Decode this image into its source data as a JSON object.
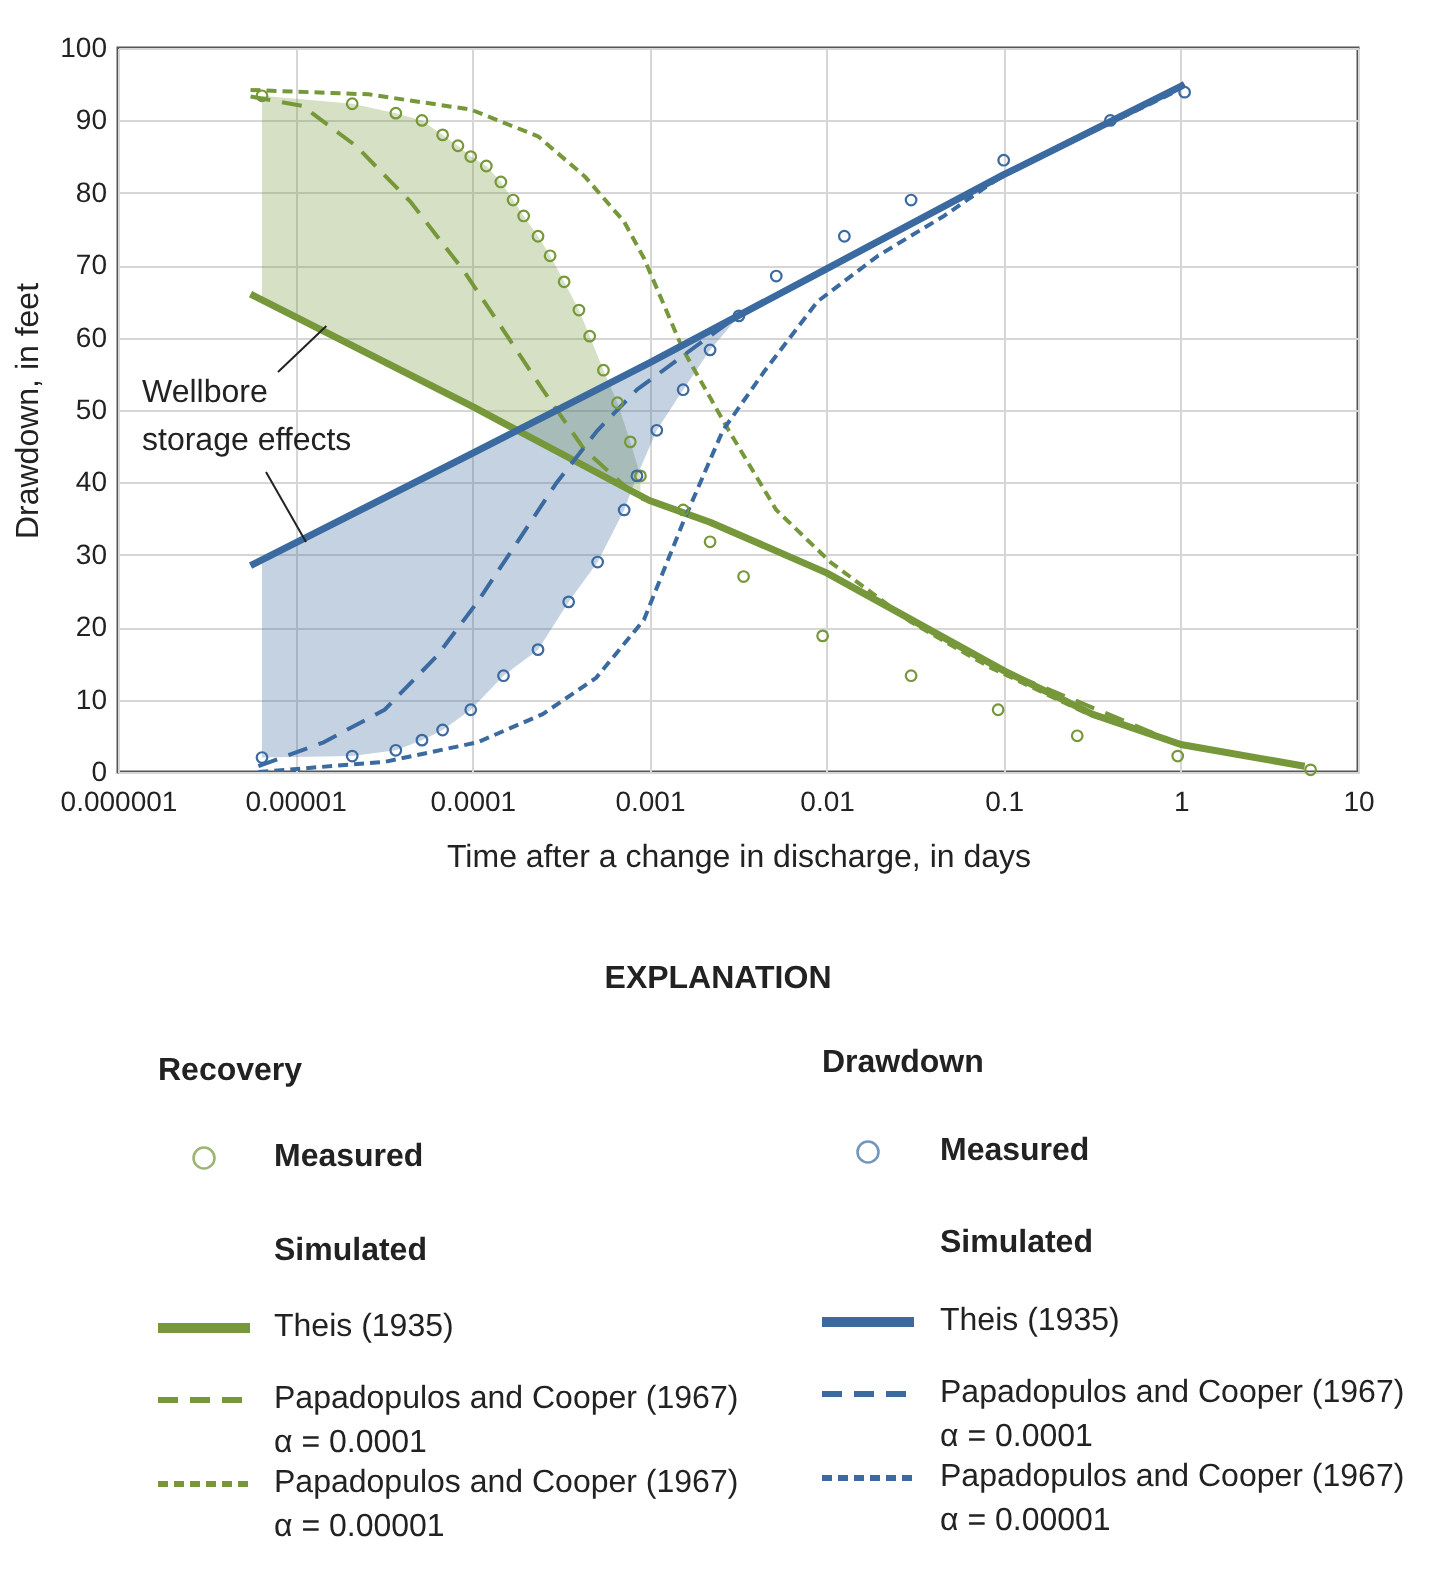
{
  "chart_data": {
    "type": "line",
    "xlabel": "Time after a change in discharge, in days",
    "ylabel": "Drawdown, in feet",
    "log": "x",
    "grid": true,
    "legend": "bottom",
    "legend_title": "EXPLANATION",
    "xlim": [
      1e-06,
      10
    ],
    "xticks": [
      {
        "value": 1e-06,
        "label": "0.000001"
      },
      {
        "value": 1e-05,
        "label": "0.00001"
      },
      {
        "value": 0.0001,
        "label": "0.0001"
      },
      {
        "value": 0.001,
        "label": "0.001"
      },
      {
        "value": 0.01,
        "label": "0.01"
      },
      {
        "value": 0.1,
        "label": "0.1"
      },
      {
        "value": 1,
        "label": "1"
      },
      {
        "value": 10,
        "label": "10"
      }
    ],
    "ylim": [
      0,
      100
    ],
    "yticks": [
      0,
      10,
      20,
      30,
      40,
      50,
      60,
      70,
      80,
      90,
      100
    ],
    "annotations": [
      {
        "text": "Wellbore\nstorage effects",
        "x": 1.5e-05,
        "y": 61.6
      },
      "Recovery",
      "Drawdown",
      "Simulated",
      "Simulated"
    ],
    "series": [
      {
        "name": "Measured",
        "type": "scatter",
        "marker": "circle",
        "color": "#76983a",
        "x": [
          6.5e-06,
          2.1e-05,
          3.7e-05,
          5.2e-05,
          6.8e-05,
          8.3e-05,
          9.8e-05,
          0.00012,
          0.000145,
          0.00017,
          0.000195,
          0.000235,
          0.000275,
          0.00033,
          0.0004,
          0.00046,
          0.00055,
          0.00066,
          0.00078,
          0.00089,
          0.00155,
          0.0022,
          0.0034,
          0.0095,
          0.03,
          0.093,
          0.26,
          0.96,
          5.4
        ],
        "values": [
          93.4,
          92.3,
          91,
          90,
          88,
          86.5,
          85,
          83.7,
          81.5,
          79,
          76.8,
          74,
          71.3,
          67.7,
          63.8,
          60.2,
          55.5,
          51,
          45.6,
          40.9,
          36.2,
          31.8,
          27,
          18.8,
          13.3,
          8.6,
          5,
          2.2,
          0.3
        ],
        "lower": [
          65.3,
          58.8,
          55.8,
          54,
          52.6,
          51.5,
          50.6,
          49.6,
          48.5,
          47.6,
          46.9,
          45.9,
          45,
          44,
          43,
          42.3,
          41.3,
          40.3,
          39.5,
          38.7,
          null,
          null,
          null,
          null,
          null,
          null,
          null,
          null,
          null
        ],
        "upper": [
          93.4,
          92.3,
          91,
          90,
          88,
          86.5,
          85,
          83.7,
          81.5,
          79,
          76.8,
          74,
          71.3,
          67.7,
          63.8,
          60.2,
          55.5,
          51,
          45.6,
          40.9,
          null,
          null,
          null,
          null,
          null,
          null,
          null,
          null,
          null
        ]
      },
      {
        "name": "Theis (1935)",
        "line_style": "solid",
        "color": "#76983a",
        "x": [
          5.6e-06,
          0.0001,
          0.001,
          0.0022,
          0.01,
          0.1,
          0.316,
          1,
          5
        ],
        "values": [
          66,
          50.5,
          37.5,
          34.5,
          27.5,
          14,
          8,
          3.8,
          0.8
        ]
      },
      {
        "name": "Papadopulos and Cooper (1967)\nα = 0.0001",
        "line_style": "dashed",
        "color": "#76983a",
        "x": [
          5.6e-06,
          1.1e-05,
          2.2e-05,
          4.5e-05,
          8.9e-05,
          0.00015,
          0.00025,
          0.00043,
          0.00085,
          0.0022,
          0.01,
          0.1,
          1,
          4.5
        ],
        "values": [
          93.3,
          92,
          86.5,
          78.7,
          69.3,
          61,
          52.8,
          44.5,
          38,
          34.5,
          27.5,
          14,
          3.8,
          1
        ]
      },
      {
        "name": "Papadopulos and Cooper (1967)\nα = 0.00001",
        "line_style": "dotted",
        "color": "#76983a",
        "x": [
          5.6e-06,
          2.6e-05,
          9.8e-05,
          0.000235,
          0.00043,
          0.00072,
          0.00093,
          0.00155,
          0.0028,
          0.0052,
          0.0105,
          0.03,
          0.083,
          0.3,
          1,
          5
        ],
        "values": [
          94.2,
          93.6,
          91.5,
          87.8,
          82.3,
          76,
          71,
          58.3,
          47.2,
          36.2,
          29,
          20.7,
          14.5,
          8,
          3.8,
          0.8
        ]
      },
      {
        "name": "Measured",
        "type": "scatter",
        "marker": "circle",
        "color": "#3b6aa0",
        "x": [
          6.5e-06,
          2.1e-05,
          3.7e-05,
          5.2e-05,
          6.8e-05,
          9.8e-05,
          0.00015,
          0.000235,
          0.00035,
          0.00051,
          0.00072,
          0.00085,
          0.0011,
          0.00155,
          0.0022,
          0.0032,
          0.0052,
          0.0126,
          0.03,
          0.1,
          0.4,
          1.05
        ],
        "values": [
          2,
          2.2,
          3,
          4.4,
          5.8,
          8.6,
          13.3,
          16.9,
          23.5,
          29,
          36.2,
          40.9,
          47.2,
          52.8,
          58.3,
          63,
          68.5,
          74,
          79,
          84.5,
          90,
          93.9
        ],
        "lower": [
          2,
          2.2,
          3,
          4.4,
          5.8,
          8.6,
          13.3,
          16.9,
          23.5,
          29,
          36.2,
          40.9,
          47.2,
          52.8,
          58.3,
          63,
          null,
          null,
          null,
          null,
          null,
          null
        ],
        "upper": [
          29.3,
          35.8,
          38.8,
          40.6,
          42,
          44,
          46.4,
          48.8,
          51,
          53,
          54.9,
          55.8,
          57.3,
          59,
          60.9,
          62.9,
          null,
          null,
          null,
          null,
          null,
          null
        ]
      },
      {
        "name": "Theis (1935)",
        "line_style": "solid",
        "color": "#3b6aa0",
        "x": [
          5.6e-06,
          0.0001,
          0.001,
          0.00316,
          0.01,
          0.1,
          1,
          1.05
        ],
        "values": [
          28.5,
          44,
          56.5,
          63,
          69.5,
          82.5,
          94.7,
          95
        ]
      },
      {
        "name": "Papadopulos and Cooper (1967)\nα = 0.0001",
        "line_style": "dashed",
        "color": "#3b6aa0",
        "x": [
          6.2e-06,
          1.45e-05,
          3.2e-05,
          6.3e-05,
          0.000107,
          0.00018,
          0.0003,
          0.00051,
          0.00085,
          0.002,
          0.00316,
          0.01,
          0.1,
          1
        ],
        "values": [
          0.8,
          4.1,
          8.6,
          16,
          23.5,
          31.8,
          40,
          47.2,
          52.8,
          59.5,
          63,
          69.5,
          82.5,
          94.7
        ]
      },
      {
        "name": "Papadopulos and Cooper (1967)\nα = 0.00001",
        "line_style": "dotted",
        "color": "#3b6aa0",
        "x": [
          6.2e-06,
          3.2e-05,
          0.000107,
          0.00025,
          0.0005,
          0.00093,
          0.00155,
          0.0026,
          0.0045,
          0.0089,
          0.0195,
          0.046,
          0.1,
          0.9
        ],
        "values": [
          0,
          1.4,
          4.1,
          8,
          13,
          21,
          34.5,
          47.2,
          55.5,
          65,
          71.3,
          76.8,
          82.5,
          93.8
        ]
      }
    ]
  }
}
